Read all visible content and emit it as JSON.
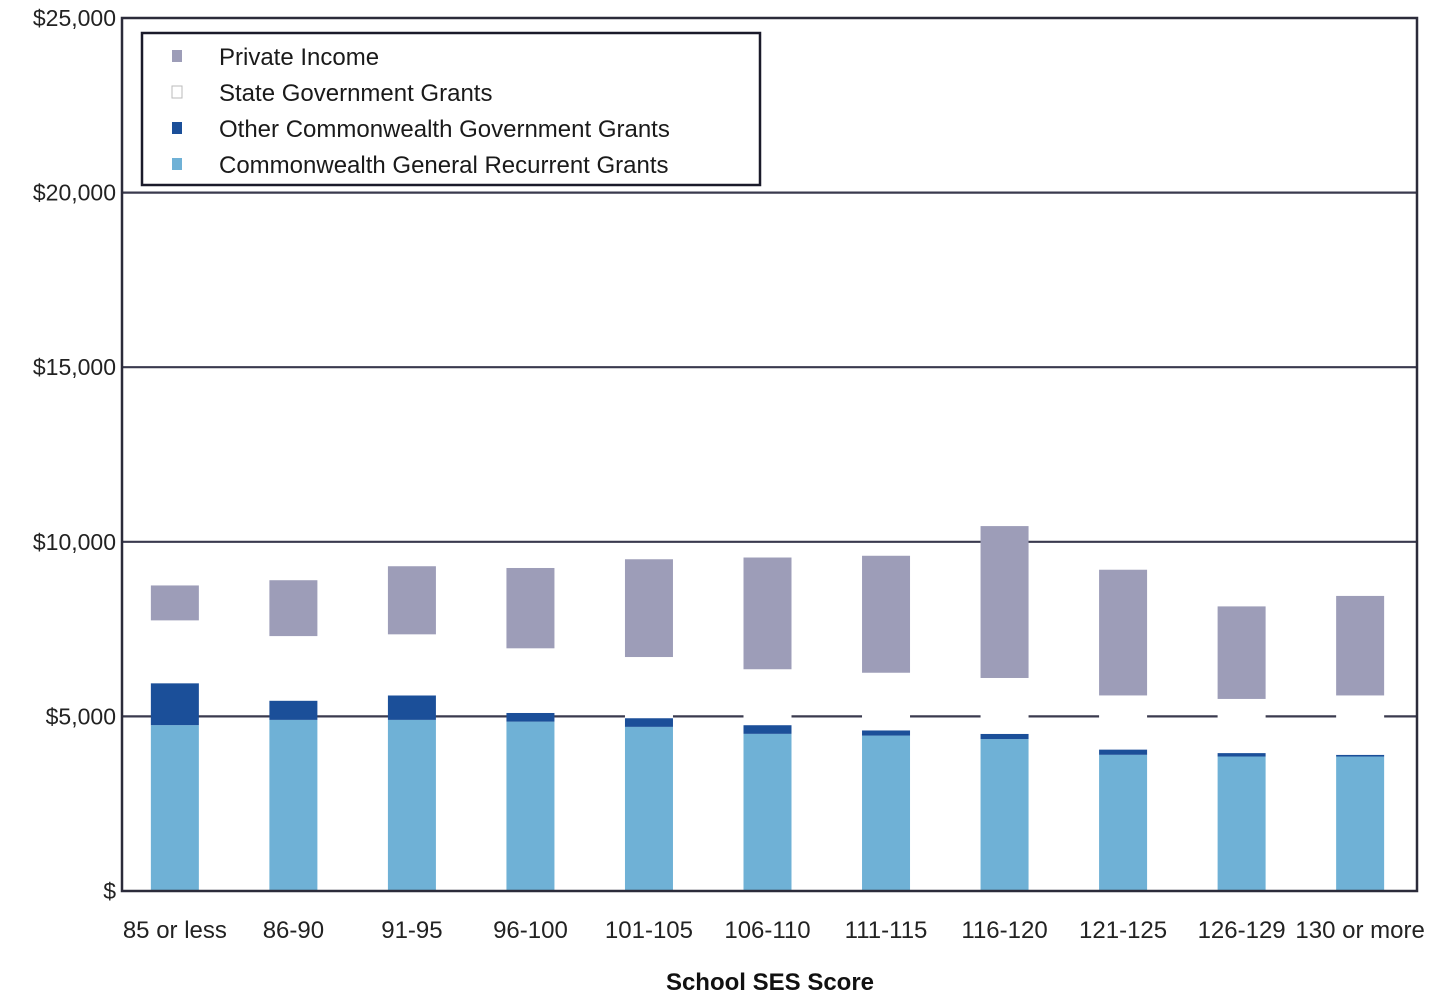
{
  "chart_data": {
    "type": "bar",
    "stacked": true,
    "title": "",
    "xlabel": "School SES Score",
    "ylabel": "",
    "ylim": [
      0,
      25000
    ],
    "y_ticks": [
      0,
      5000,
      10000,
      15000,
      20000,
      25000
    ],
    "y_tick_labels": [
      "$",
      "$5,000",
      "$10,000",
      "$15,000",
      "$20,000",
      "$25,000"
    ],
    "grid": true,
    "legend_position": "top-left",
    "categories": [
      "85 or less",
      "86-90",
      "91-95",
      "96-100",
      "101-105",
      "106-110",
      "111-115",
      "116-120",
      "121-125",
      "126-129",
      "130 or more"
    ],
    "series": [
      {
        "name": "Commonwealth General Recurrent Grants",
        "color": "#6fb1d6",
        "values": [
          4750,
          4900,
          4900,
          4850,
          4700,
          4500,
          4450,
          4350,
          3900,
          3850,
          3850
        ]
      },
      {
        "name": "Other Commonwealth Government Grants",
        "color": "#1b4f99",
        "values": [
          1200,
          550,
          700,
          250,
          250,
          250,
          150,
          150,
          150,
          100,
          50
        ]
      },
      {
        "name": "State Government Grants",
        "color": "#ffffff",
        "values": [
          1800,
          1850,
          1750,
          1850,
          1750,
          1600,
          1650,
          1600,
          1550,
          1550,
          1700
        ]
      },
      {
        "name": "Private Income",
        "color": "#9d9db8",
        "values": [
          1000,
          1600,
          1950,
          2300,
          2800,
          3200,
          3350,
          4350,
          3600,
          2650,
          2850
        ]
      }
    ],
    "legend_order": [
      "Private Income",
      "State Government Grants",
      "Other Commonwealth Government Grants",
      "Commonwealth General Recurrent Grants"
    ]
  }
}
